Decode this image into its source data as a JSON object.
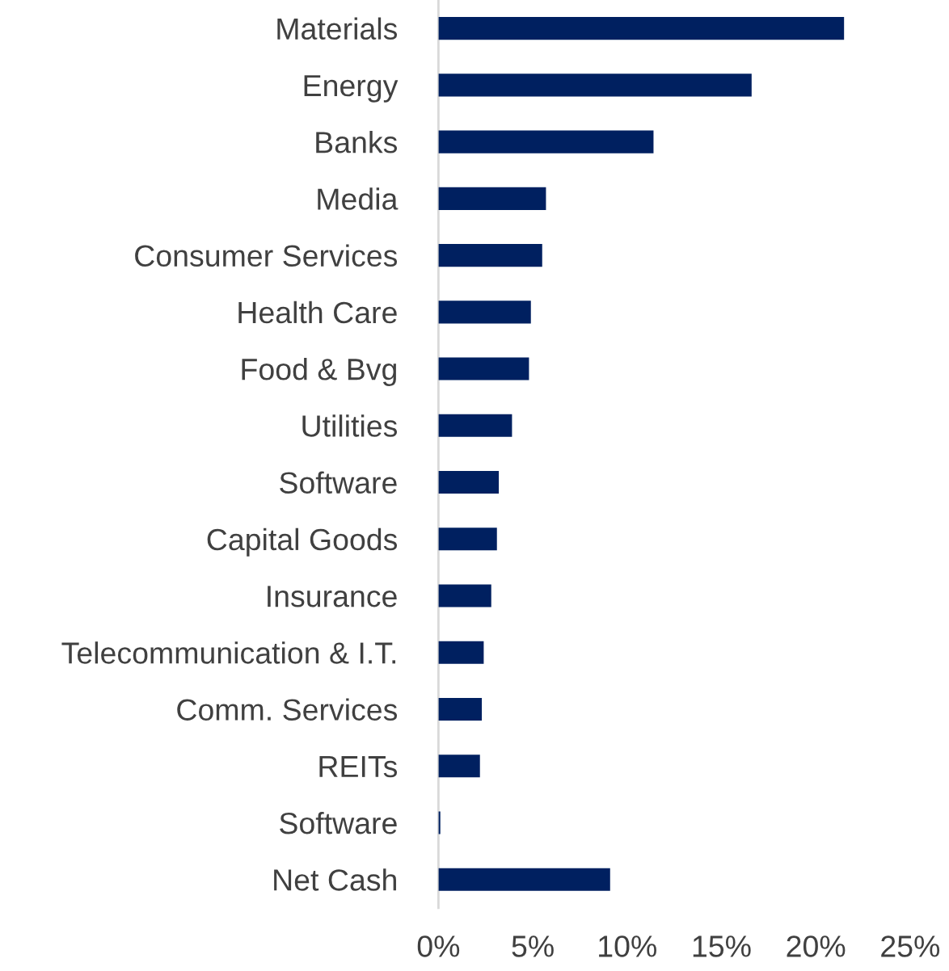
{
  "chart_data": {
    "type": "bar",
    "orientation": "horizontal",
    "categories": [
      "Materials",
      "Energy",
      "Banks",
      "Media",
      "Consumer Services",
      "Health Care",
      "Food & Bvg",
      "Utilities",
      "Software",
      "Capital Goods",
      "Insurance",
      "Telecommunication & I.T.",
      "Comm. Services",
      "REITs",
      "Software",
      "Net Cash"
    ],
    "values": [
      21.5,
      16.6,
      11.4,
      5.7,
      5.5,
      4.9,
      4.8,
      3.9,
      3.2,
      3.1,
      2.8,
      2.4,
      2.3,
      2.2,
      0.1,
      9.1
    ],
    "color": "#002060",
    "xlim": [
      0,
      25
    ],
    "xticks": [
      {
        "value": 0,
        "label": "0%"
      },
      {
        "value": 5,
        "label": "5%"
      },
      {
        "value": 10,
        "label": "10%"
      },
      {
        "value": 15,
        "label": "15%"
      },
      {
        "value": 20,
        "label": "20%"
      },
      {
        "value": 25,
        "label": "25%"
      }
    ],
    "grid": false,
    "legend": false
  }
}
